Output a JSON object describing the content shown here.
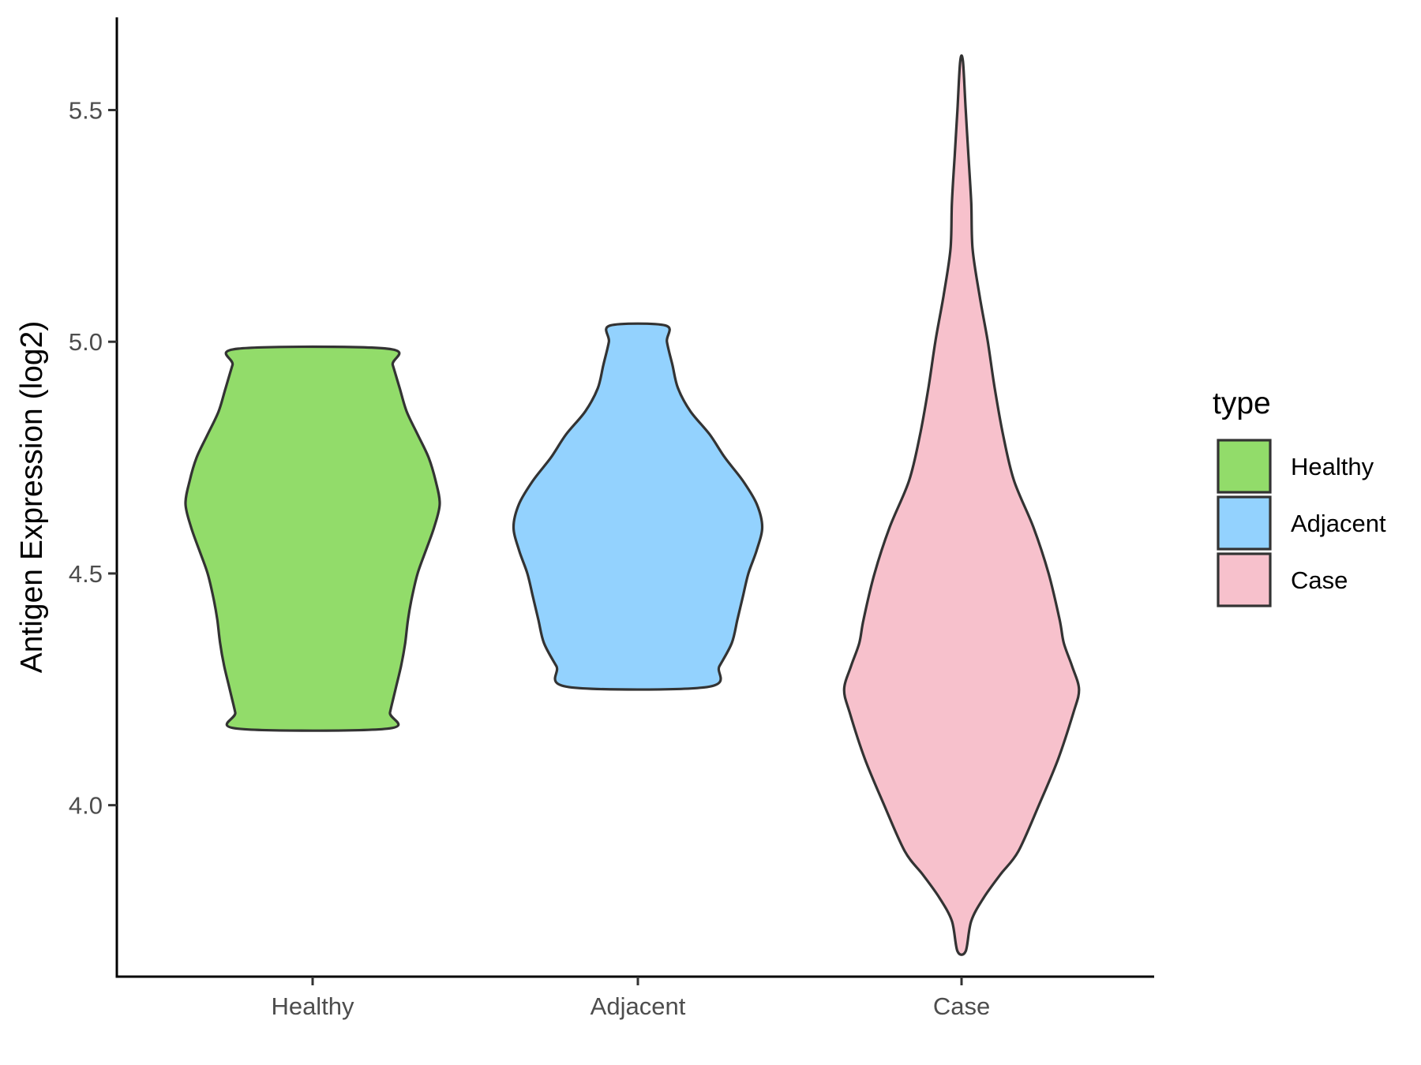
{
  "chart_data": {
    "type": "violin",
    "title": "",
    "xlabel": "",
    "ylabel": "Antigen Expression (log2)",
    "ylim": [
      3.63,
      5.7
    ],
    "yticks": [
      4.0,
      4.5,
      5.0,
      5.5
    ],
    "ytick_labels": [
      "4.0",
      "4.5",
      "5.0",
      "5.5"
    ],
    "categories": [
      "Healthy",
      "Adjacent",
      "Case"
    ],
    "grid": false,
    "legend": {
      "title": "type",
      "position": "right",
      "items": [
        "Healthy",
        "Adjacent",
        "Case"
      ]
    },
    "colors": {
      "Healthy": "#92dc6a",
      "Adjacent": "#93d2fe",
      "Case": "#f7c1cc",
      "outline": "#333333"
    },
    "series": [
      {
        "name": "Healthy",
        "min": 4.165,
        "max": 4.985,
        "density_profile": [
          [
            4.165,
            0.54
          ],
          [
            4.2,
            0.56
          ],
          [
            4.25,
            0.6
          ],
          [
            4.3,
            0.64
          ],
          [
            4.35,
            0.67
          ],
          [
            4.4,
            0.69
          ],
          [
            4.45,
            0.72
          ],
          [
            4.5,
            0.76
          ],
          [
            4.55,
            0.82
          ],
          [
            4.6,
            0.88
          ],
          [
            4.65,
            0.92
          ],
          [
            4.7,
            0.89
          ],
          [
            4.75,
            0.84
          ],
          [
            4.8,
            0.76
          ],
          [
            4.85,
            0.68
          ],
          [
            4.9,
            0.63
          ],
          [
            4.95,
            0.58
          ],
          [
            4.985,
            0.54
          ]
        ]
      },
      {
        "name": "Adjacent",
        "min": 4.255,
        "max": 5.035,
        "density_profile": [
          [
            4.255,
            0.5
          ],
          [
            4.3,
            0.59
          ],
          [
            4.35,
            0.68
          ],
          [
            4.4,
            0.72
          ],
          [
            4.45,
            0.76
          ],
          [
            4.5,
            0.8
          ],
          [
            4.55,
            0.86
          ],
          [
            4.6,
            0.9
          ],
          [
            4.65,
            0.86
          ],
          [
            4.7,
            0.76
          ],
          [
            4.75,
            0.63
          ],
          [
            4.8,
            0.52
          ],
          [
            4.85,
            0.38
          ],
          [
            4.9,
            0.29
          ],
          [
            4.95,
            0.25
          ],
          [
            5.0,
            0.21
          ],
          [
            5.035,
            0.2
          ]
        ]
      },
      {
        "name": "Case",
        "min": 3.685,
        "max": 5.605,
        "density_profile": [
          [
            3.685,
            0.03
          ],
          [
            3.75,
            0.07
          ],
          [
            3.8,
            0.16
          ],
          [
            3.85,
            0.28
          ],
          [
            3.9,
            0.41
          ],
          [
            4.0,
            0.56
          ],
          [
            4.1,
            0.7
          ],
          [
            4.2,
            0.81
          ],
          [
            4.25,
            0.85
          ],
          [
            4.3,
            0.8
          ],
          [
            4.35,
            0.74
          ],
          [
            4.4,
            0.71
          ],
          [
            4.5,
            0.63
          ],
          [
            4.6,
            0.52
          ],
          [
            4.7,
            0.38
          ],
          [
            4.8,
            0.3
          ],
          [
            4.9,
            0.24
          ],
          [
            5.0,
            0.19
          ],
          [
            5.1,
            0.13
          ],
          [
            5.2,
            0.08
          ],
          [
            5.3,
            0.07
          ],
          [
            5.4,
            0.05
          ],
          [
            5.5,
            0.03
          ],
          [
            5.605,
            0.01
          ]
        ]
      }
    ]
  }
}
